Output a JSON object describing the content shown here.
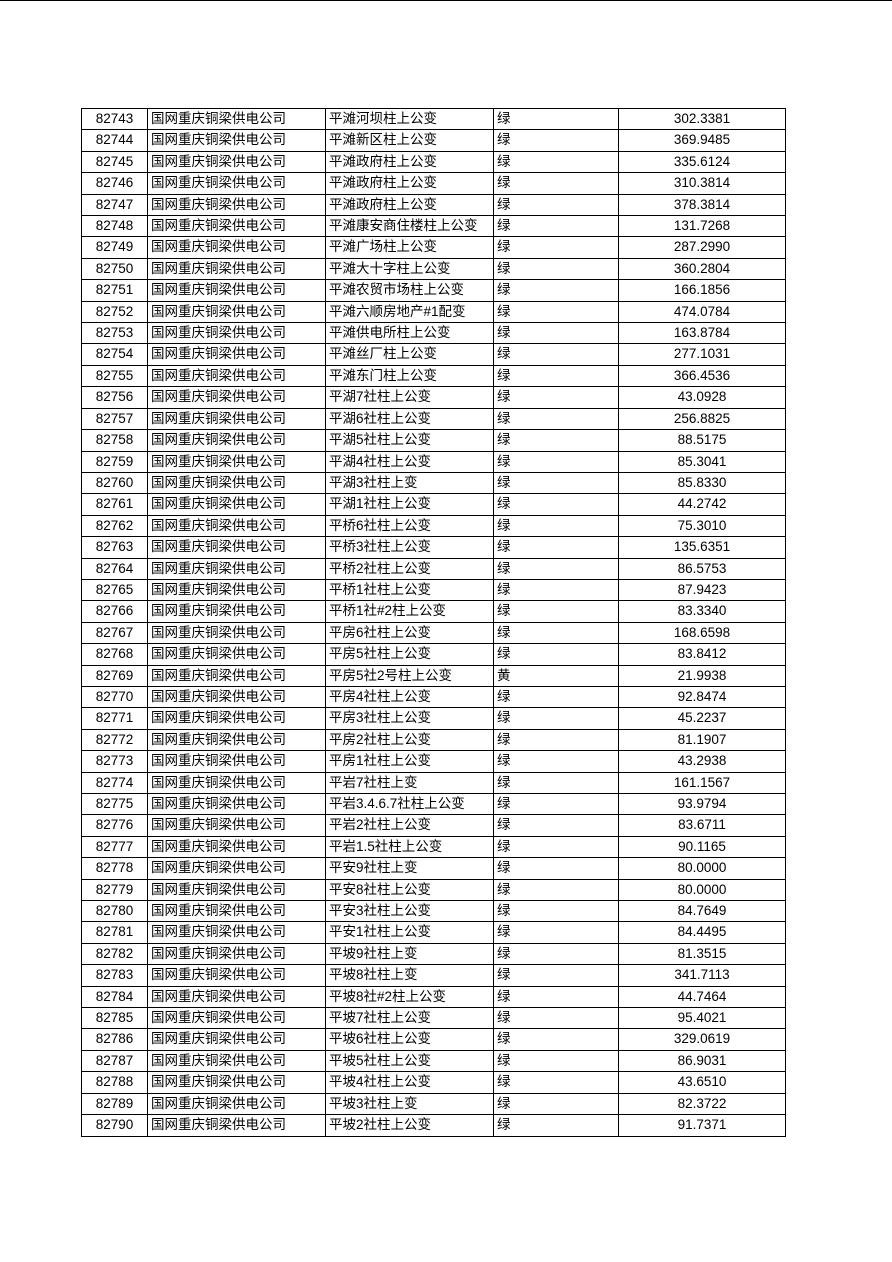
{
  "table": {
    "rows": [
      [
        "82743",
        "国网重庆铜梁供电公司",
        "平滩河坝柱上公变",
        "绿",
        "302.3381"
      ],
      [
        "82744",
        "国网重庆铜梁供电公司",
        "平滩新区柱上公变",
        "绿",
        "369.9485"
      ],
      [
        "82745",
        "国网重庆铜梁供电公司",
        "平滩政府柱上公变",
        "绿",
        "335.6124"
      ],
      [
        "82746",
        "国网重庆铜梁供电公司",
        "平滩政府柱上公变",
        "绿",
        "310.3814"
      ],
      [
        "82747",
        "国网重庆铜梁供电公司",
        "平滩政府柱上公变",
        "绿",
        "378.3814"
      ],
      [
        "82748",
        "国网重庆铜梁供电公司",
        "平滩康安商住楼柱上公变",
        "绿",
        "131.7268"
      ],
      [
        "82749",
        "国网重庆铜梁供电公司",
        "平滩广场柱上公变",
        "绿",
        "287.2990"
      ],
      [
        "82750",
        "国网重庆铜梁供电公司",
        "平滩大十字柱上公变",
        "绿",
        "360.2804"
      ],
      [
        "82751",
        "国网重庆铜梁供电公司",
        "平滩农贸市场柱上公变",
        "绿",
        "166.1856"
      ],
      [
        "82752",
        "国网重庆铜梁供电公司",
        "平滩六顺房地产#1配变",
        "绿",
        "474.0784"
      ],
      [
        "82753",
        "国网重庆铜梁供电公司",
        "平滩供电所柱上公变",
        "绿",
        "163.8784"
      ],
      [
        "82754",
        "国网重庆铜梁供电公司",
        "平滩丝厂柱上公变",
        "绿",
        "277.1031"
      ],
      [
        "82755",
        "国网重庆铜梁供电公司",
        "平滩东门柱上公变",
        "绿",
        "366.4536"
      ],
      [
        "82756",
        "国网重庆铜梁供电公司",
        "平湖7社柱上公变",
        "绿",
        "43.0928"
      ],
      [
        "82757",
        "国网重庆铜梁供电公司",
        "平湖6社柱上公变",
        "绿",
        "256.8825"
      ],
      [
        "82758",
        "国网重庆铜梁供电公司",
        "平湖5社柱上公变",
        "绿",
        "88.5175"
      ],
      [
        "82759",
        "国网重庆铜梁供电公司",
        "平湖4社柱上公变",
        "绿",
        "85.3041"
      ],
      [
        "82760",
        "国网重庆铜梁供电公司",
        "平湖3社柱上变",
        "绿",
        "85.8330"
      ],
      [
        "82761",
        "国网重庆铜梁供电公司",
        "平湖1社柱上公变",
        "绿",
        "44.2742"
      ],
      [
        "82762",
        "国网重庆铜梁供电公司",
        "平桥6社柱上公变",
        "绿",
        "75.3010"
      ],
      [
        "82763",
        "国网重庆铜梁供电公司",
        "平桥3社柱上公变",
        "绿",
        "135.6351"
      ],
      [
        "82764",
        "国网重庆铜梁供电公司",
        "平桥2社柱上公变",
        "绿",
        "86.5753"
      ],
      [
        "82765",
        "国网重庆铜梁供电公司",
        "平桥1社柱上公变",
        "绿",
        "87.9423"
      ],
      [
        "82766",
        "国网重庆铜梁供电公司",
        "平桥1社#2柱上公变",
        "绿",
        "83.3340"
      ],
      [
        "82767",
        "国网重庆铜梁供电公司",
        "平房6社柱上公变",
        "绿",
        "168.6598"
      ],
      [
        "82768",
        "国网重庆铜梁供电公司",
        "平房5社柱上公变",
        "绿",
        "83.8412"
      ],
      [
        "82769",
        "国网重庆铜梁供电公司",
        "平房5社2号柱上公变",
        "黄",
        "21.9938"
      ],
      [
        "82770",
        "国网重庆铜梁供电公司",
        "平房4社柱上公变",
        "绿",
        "92.8474"
      ],
      [
        "82771",
        "国网重庆铜梁供电公司",
        "平房3社柱上公变",
        "绿",
        "45.2237"
      ],
      [
        "82772",
        "国网重庆铜梁供电公司",
        "平房2社柱上公变",
        "绿",
        "81.1907"
      ],
      [
        "82773",
        "国网重庆铜梁供电公司",
        "平房1社柱上公变",
        "绿",
        "43.2938"
      ],
      [
        "82774",
        "国网重庆铜梁供电公司",
        "平岩7社柱上变",
        "绿",
        "161.1567"
      ],
      [
        "82775",
        "国网重庆铜梁供电公司",
        "平岩3.4.6.7社柱上公变",
        "绿",
        "93.9794"
      ],
      [
        "82776",
        "国网重庆铜梁供电公司",
        "平岩2社柱上公变",
        "绿",
        "83.6711"
      ],
      [
        "82777",
        "国网重庆铜梁供电公司",
        "平岩1.5社柱上公变",
        "绿",
        "90.1165"
      ],
      [
        "82778",
        "国网重庆铜梁供电公司",
        "平安9社柱上变",
        "绿",
        "80.0000"
      ],
      [
        "82779",
        "国网重庆铜梁供电公司",
        "平安8社柱上公变",
        "绿",
        "80.0000"
      ],
      [
        "82780",
        "国网重庆铜梁供电公司",
        "平安3社柱上公变",
        "绿",
        "84.7649"
      ],
      [
        "82781",
        "国网重庆铜梁供电公司",
        "平安1社柱上公变",
        "绿",
        "84.4495"
      ],
      [
        "82782",
        "国网重庆铜梁供电公司",
        "平坡9社柱上变",
        "绿",
        "81.3515"
      ],
      [
        "82783",
        "国网重庆铜梁供电公司",
        "平坡8社柱上变",
        "绿",
        "341.7113"
      ],
      [
        "82784",
        "国网重庆铜梁供电公司",
        "平坡8社#2柱上公变",
        "绿",
        "44.7464"
      ],
      [
        "82785",
        "国网重庆铜梁供电公司",
        "平坡7社柱上公变",
        "绿",
        "95.4021"
      ],
      [
        "82786",
        "国网重庆铜梁供电公司",
        "平坡6社柱上公变",
        "绿",
        "329.0619"
      ],
      [
        "82787",
        "国网重庆铜梁供电公司",
        "平坡5社柱上公变",
        "绿",
        "86.9031"
      ],
      [
        "82788",
        "国网重庆铜梁供电公司",
        "平坡4社柱上公变",
        "绿",
        "43.6510"
      ],
      [
        "82789",
        "国网重庆铜梁供电公司",
        "平坡3社柱上变",
        "绿",
        "82.3722"
      ],
      [
        "82790",
        "国网重庆铜梁供电公司",
        "平坡2社柱上公变",
        "绿",
        "91.7371"
      ]
    ]
  }
}
